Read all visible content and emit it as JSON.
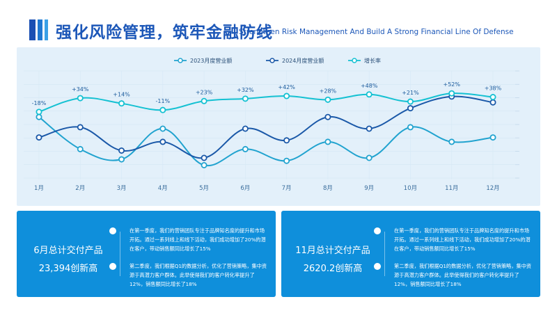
{
  "header": {
    "title_cn": "强化风险管理，筑牢金融防线",
    "title_en": "Strengthen Risk Management And Build A Strong Financial Line Of Defense"
  },
  "colors": {
    "s2023": "#21a3cf",
    "s2024": "#1a58a8",
    "growth": "#14c1d2",
    "card": "#0f8fdb",
    "title": "#1c57b8"
  },
  "chart_data": {
    "type": "line",
    "categories": [
      "1月",
      "2月",
      "3月",
      "4月",
      "5月",
      "6月",
      "7月",
      "8月",
      "9月",
      "10月",
      "11月",
      "12月"
    ],
    "series": [
      {
        "name": "2023月度营业额",
        "values": [
          38,
          16,
          9,
          30,
          5,
          16,
          8,
          21,
          10,
          31,
          21,
          24
        ]
      },
      {
        "name": "2024月度营业额",
        "values": [
          24,
          31,
          15,
          21,
          10,
          30,
          22,
          38,
          30,
          44,
          52,
          48
        ]
      },
      {
        "name": "增长率",
        "values": [
          -18,
          34,
          14,
          -11,
          23,
          32,
          42,
          28,
          48,
          21,
          52,
          38
        ]
      }
    ],
    "data_labels": [
      "-18%",
      "+34%",
      "+14%",
      "-11%",
      "+23%",
      "+32%",
      "+42%",
      "+28%",
      "+48%",
      "+21%",
      "+52%",
      "+38%"
    ],
    "legend_position": "top-center",
    "title": "",
    "xlabel": "",
    "ylabel": ""
  },
  "cards": [
    {
      "title": "6月总计交付产品",
      "value": "23,394创新高",
      "text1": "在第一季度，我们的营销团队专注于品牌知名度的提升和市场开拓。通过一系列线上和线下活动，我们成功增加了20%的潜在客户，带动销售额同比增长了15%",
      "text2": "第二季度，我们根据Q1的数据分析，优化了营销策略，集中资源于高潜力客户群体。此举使得我们的客户转化率提升了12%，销售额同比增长了18%"
    },
    {
      "title": "11月总计交付产品",
      "value": "2620.2创新高",
      "text1": "在第一季度，我们的营销团队专注于品牌知名度的提升和市场开拓。通过一系列线上和线下活动，我们成功增加了20%的潜在客户，带动销售额同比增长了15%",
      "text2": "第二季度，我们根据Q1的数据分析，优化了营销策略，集中资源于高潜力客户群体。此举使得我们的客户转化率提升了12%，销售额同比增长了18%"
    }
  ]
}
